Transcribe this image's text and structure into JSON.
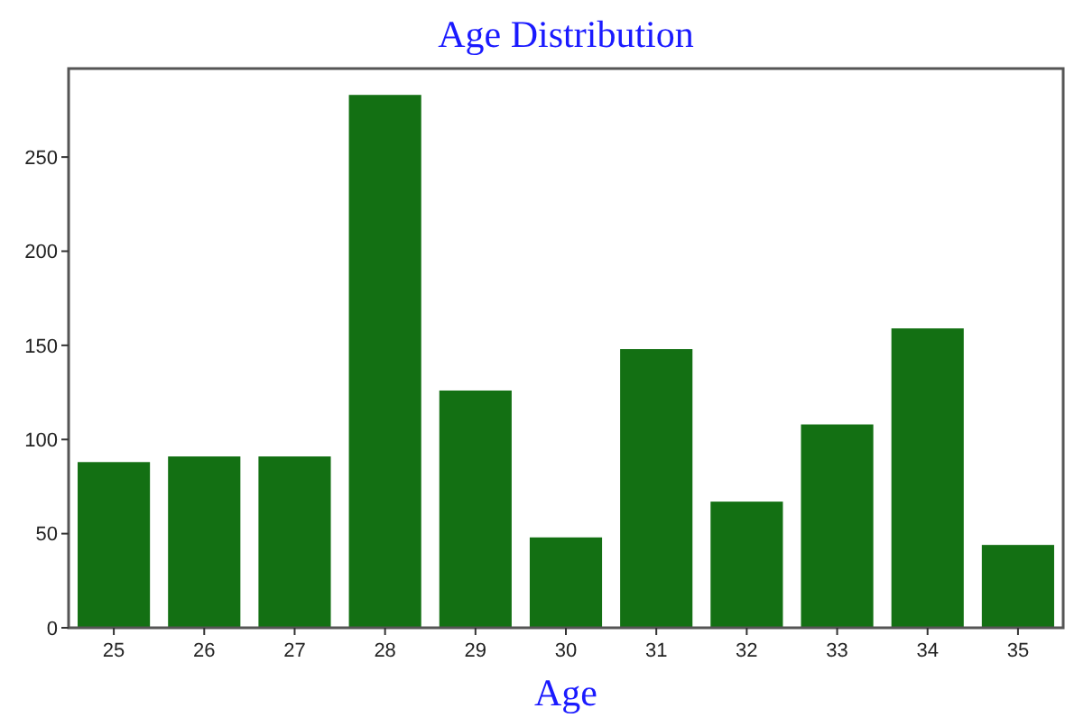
{
  "chart_data": {
    "type": "bar",
    "title": "Age Distribution",
    "xlabel": "Age",
    "categories": [
      "25",
      "26",
      "27",
      "28",
      "29",
      "30",
      "31",
      "32",
      "33",
      "34",
      "35"
    ],
    "values": [
      88,
      91,
      91,
      283,
      126,
      48,
      148,
      67,
      108,
      159,
      44
    ],
    "color": "#137013",
    "ylim": [
      0,
      297
    ],
    "yticks": [
      0,
      50,
      100,
      150,
      200,
      250
    ],
    "grid": false
  }
}
